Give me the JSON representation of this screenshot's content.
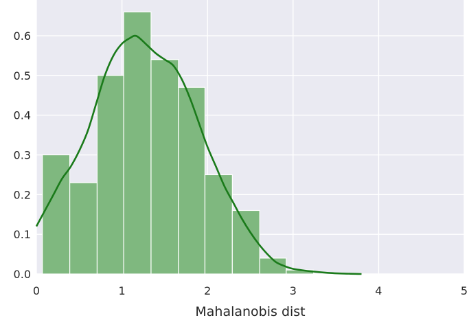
{
  "chart_data": {
    "type": "bar",
    "title": "",
    "xlabel": "Mahalanobis dist",
    "ylabel": "",
    "xlim": [
      0,
      5
    ],
    "ylim": [
      0,
      0.69
    ],
    "grid": true,
    "xticks": [
      0,
      1,
      2,
      3,
      4,
      5
    ],
    "xtick_labels": [
      "0",
      "1",
      "2",
      "3",
      "4",
      "5"
    ],
    "yticks": [
      0.0,
      0.1,
      0.2,
      0.3,
      0.4,
      0.5,
      0.6
    ],
    "ytick_labels": [
      "0.0",
      "0.1",
      "0.2",
      "0.3",
      "0.4",
      "0.5",
      "0.6"
    ],
    "histogram": {
      "bin_edges": [
        0.07,
        0.39,
        0.71,
        1.02,
        1.34,
        1.66,
        1.97,
        2.29,
        2.61,
        2.92,
        3.24
      ],
      "values": [
        0.3,
        0.23,
        0.5,
        0.66,
        0.54,
        0.47,
        0.25,
        0.16,
        0.04,
        0.01
      ]
    },
    "kde": {
      "x": [
        0.0,
        0.1,
        0.2,
        0.3,
        0.4,
        0.5,
        0.6,
        0.7,
        0.8,
        0.9,
        1.0,
        1.1,
        1.15,
        1.2,
        1.3,
        1.4,
        1.5,
        1.6,
        1.7,
        1.8,
        1.9,
        2.0,
        2.1,
        2.2,
        2.3,
        2.4,
        2.5,
        2.6,
        2.7,
        2.8,
        2.9,
        3.0,
        3.2,
        3.4,
        3.6,
        3.8
      ],
      "y": [
        0.12,
        0.16,
        0.2,
        0.24,
        0.27,
        0.31,
        0.36,
        0.43,
        0.5,
        0.55,
        0.58,
        0.595,
        0.6,
        0.595,
        0.575,
        0.555,
        0.54,
        0.525,
        0.49,
        0.44,
        0.38,
        0.32,
        0.27,
        0.22,
        0.18,
        0.14,
        0.105,
        0.075,
        0.05,
        0.03,
        0.02,
        0.013,
        0.007,
        0.003,
        0.001,
        0.0
      ]
    },
    "colors": {
      "background": "#eaeaf2",
      "grid": "#ffffff",
      "bar_fill": "#7fb87f",
      "bar_edge": "#ffffff",
      "kde_line": "#1a7a1a"
    }
  }
}
